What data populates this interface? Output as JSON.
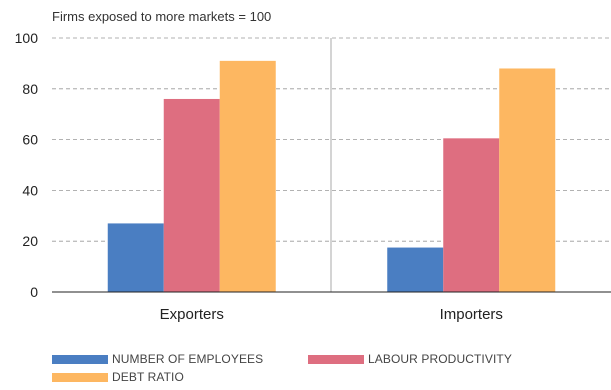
{
  "chart_data": {
    "type": "bar",
    "subtitle": "Firms exposed to more markets = 100",
    "categories": [
      "Exporters",
      "Importers"
    ],
    "series": [
      {
        "name": "NUMBER OF EMPLOYEES",
        "color": "#4a7ec2",
        "values": [
          27,
          17.5
        ]
      },
      {
        "name": "LABOUR PRODUCTIVITY",
        "color": "#de6e80",
        "values": [
          76,
          60.5
        ]
      },
      {
        "name": "DEBT RATIO",
        "color": "#fdb761",
        "values": [
          91,
          88
        ]
      }
    ],
    "ylim": [
      0,
      100
    ],
    "yticks": [
      0,
      20,
      40,
      60,
      80,
      100
    ],
    "grid": true,
    "legend": "bottom"
  }
}
